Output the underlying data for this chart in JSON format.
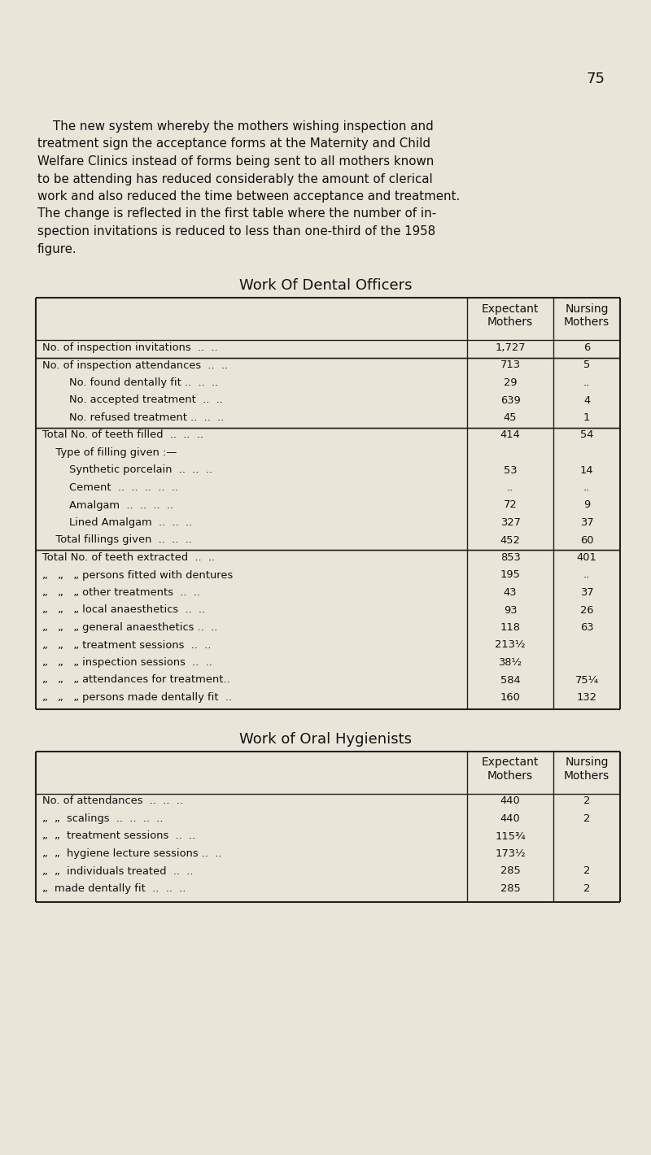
{
  "bg_color": "#e9e5d9",
  "page_number": "75",
  "intro_lines": [
    "    The new system whereby the mothers wishing inspection and",
    "treatment sign the acceptance forms at the Maternity and Child",
    "Welfare Clinics instead of forms being sent to all mothers known",
    "to be attending has reduced considerably the amount of clerical",
    "work and also reduced the time between acceptance and treatment.",
    "The change is reflected in the first table where the number of in-",
    "spection invitations is reduced to less than one-third of the 1958",
    "figure."
  ],
  "table1_title": "Work Of Dental Officers",
  "table2_title": "Work of Oral Hygienists",
  "col_header_1": "Expectant\nMothers",
  "col_header_2": "Nursing\nMothers",
  "t1_rows": [
    {
      "label": "No. of inspection invitations  ..  ..",
      "indent": 0,
      "exp": "1,727",
      "nur": "6",
      "sep_before": true,
      "sep_after": true
    },
    {
      "label": "No. of inspection attendances  ..  ..",
      "indent": 0,
      "exp": "713",
      "nur": "5",
      "sep_before": true,
      "sep_after": false
    },
    {
      "label": "        No. found dentally fit ..  ..  ..",
      "indent": 0,
      "exp": "29",
      "nur": "..",
      "sep_before": false,
      "sep_after": false
    },
    {
      "label": "        No. accepted treatment  ..  ..",
      "indent": 0,
      "exp": "639",
      "nur": "4",
      "sep_before": false,
      "sep_after": false
    },
    {
      "label": "        No. refused treatment ..  ..  ..",
      "indent": 0,
      "exp": "45",
      "nur": "1",
      "sep_before": false,
      "sep_after": true
    },
    {
      "label": "Total No. of teeth filled  ..  ..  ..",
      "indent": 0,
      "exp": "414",
      "nur": "54",
      "sep_before": true,
      "sep_after": false
    },
    {
      "label": "    Type of filling given :—",
      "indent": 0,
      "exp": "",
      "nur": "",
      "sep_before": false,
      "sep_after": false
    },
    {
      "label": "        Synthetic porcelain  ..  ..  ..",
      "indent": 0,
      "exp": "53",
      "nur": "14",
      "sep_before": false,
      "sep_after": false
    },
    {
      "label": "        Cement  ..  ..  ..  ..  ..",
      "indent": 0,
      "exp": "..",
      "nur": "..",
      "sep_before": false,
      "sep_after": false
    },
    {
      "label": "        Amalgam  ..  ..  ..  ..",
      "indent": 0,
      "exp": "72",
      "nur": "9",
      "sep_before": false,
      "sep_after": false
    },
    {
      "label": "        Lined Amalgam  ..  ..  ..",
      "indent": 0,
      "exp": "327",
      "nur": "37",
      "sep_before": false,
      "sep_after": false
    },
    {
      "label": "    Total fillings given  ..  ..  ..",
      "indent": 0,
      "exp": "452",
      "nur": "60",
      "sep_before": false,
      "sep_after": true
    },
    {
      "label": "Total No. of teeth extracted  ..  ..",
      "indent": 0,
      "exp": "853",
      "nur": "401",
      "sep_before": true,
      "sep_after": false
    },
    {
      "„row": true,
      "label": "„   „   „ persons fitted with dentures",
      "exp": "195",
      "nur": "..",
      "sep_before": false,
      "sep_after": false
    },
    {
      "„row": true,
      "label": "„   „   „ other treatments  ..  ..",
      "exp": "43",
      "nur": "37",
      "sep_before": false,
      "sep_after": false
    },
    {
      "„row": true,
      "label": "„   „   „ local anaesthetics  ..  ..",
      "exp": "93",
      "nur": "26",
      "sep_before": false,
      "sep_after": false
    },
    {
      "„row": true,
      "label": "„   „   „ general anaesthetics ..  ..",
      "exp": "118",
      "nur": "63",
      "sep_before": false,
      "sep_after": false
    },
    {
      "„row": true,
      "label": "„   „   „ treatment sessions  ..  ..",
      "exp": "213½",
      "nur": "",
      "sep_before": false,
      "sep_after": false
    },
    {
      "„row": true,
      "label": "„   „   „ inspection sessions  ..  ..",
      "exp": "38½",
      "nur": "",
      "sep_before": false,
      "sep_after": false
    },
    {
      "„row": true,
      "label": "„   „   „ attendances for treatment..",
      "exp": "584",
      "nur": "75¼",
      "sep_before": false,
      "sep_after": false
    },
    {
      "„row": true,
      "label": "„   „   „ persons made dentally fit  ..",
      "exp": "160",
      "nur": "132",
      "sep_before": false,
      "sep_after": false
    }
  ],
  "t2_rows": [
    {
      "label": "No. of attendances  ..  ..  ..",
      "exp": "440",
      "nur": "2"
    },
    {
      "label": "„  „  scalings  ..  ..  ..  ..",
      "exp": "440",
      "nur": "2"
    },
    {
      "label": "„  „  treatment sessions  ..  ..",
      "exp": "115¾",
      "nur": ""
    },
    {
      "label": "„  „  hygiene lecture sessions ..  ..",
      "exp": "173½",
      "nur": ""
    },
    {
      "label": "„  „  individuals treated  ..  ..",
      "exp": "285",
      "nur": "2"
    },
    {
      "label": "„  made dentally fit  ..  ..  ..",
      "exp": "285",
      "nur": "2"
    }
  ]
}
